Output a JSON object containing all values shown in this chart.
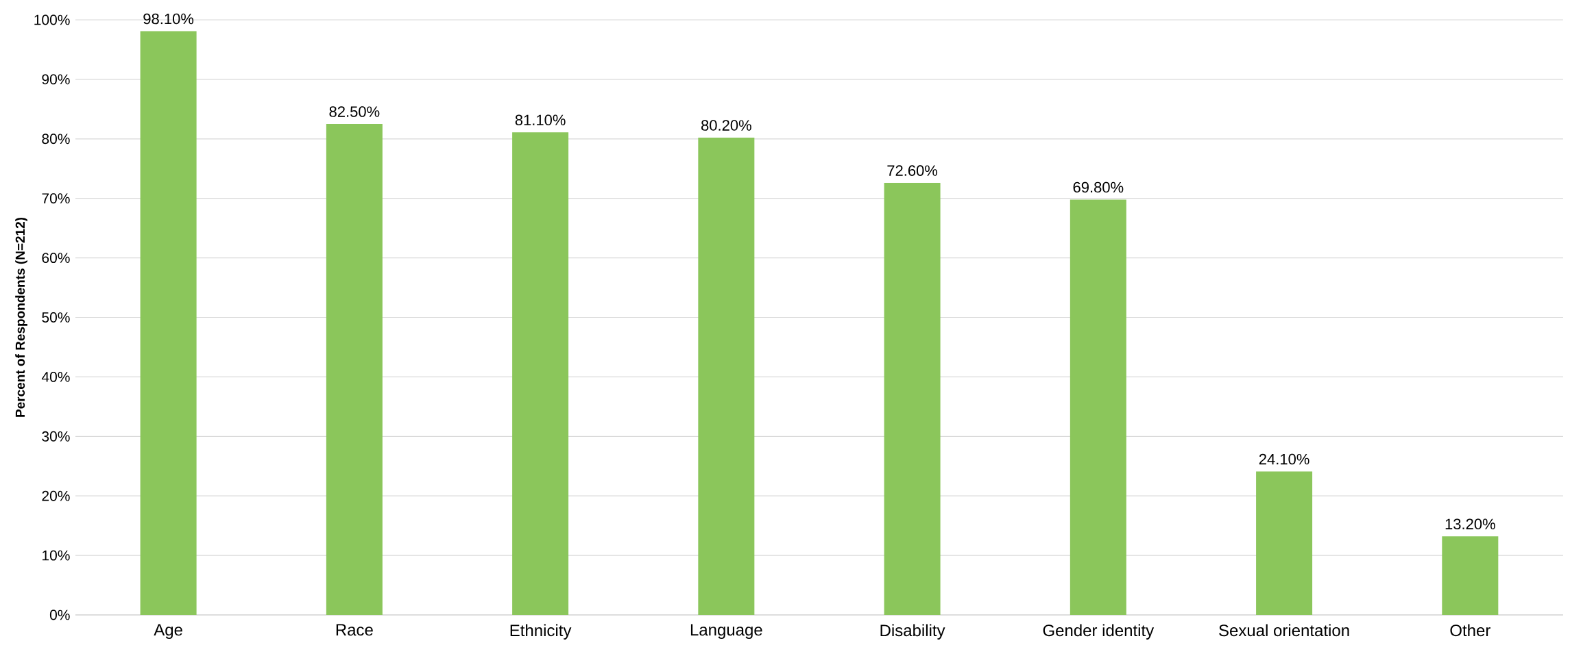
{
  "chart_data": {
    "type": "bar",
    "ylabel": "Percent of Respondents (N=212)",
    "categories": [
      "Age",
      "Race",
      "Ethnicity",
      "Language",
      "Disability",
      "Gender identity",
      "Sexual orientation",
      "Other"
    ],
    "values": [
      98.1,
      82.5,
      81.1,
      80.2,
      72.6,
      69.8,
      24.1,
      13.2
    ],
    "value_labels": [
      "98.10%",
      "82.50%",
      "81.10%",
      "80.20%",
      "72.60%",
      "69.80%",
      "24.10%",
      "13.20%"
    ],
    "color": "#8bc65b",
    "ylim": [
      0,
      100
    ],
    "yticks": [
      {
        "value": 0,
        "label": "0%"
      },
      {
        "value": 10,
        "label": "10%"
      },
      {
        "value": 20,
        "label": "20%"
      },
      {
        "value": 30,
        "label": "30%"
      },
      {
        "value": 40,
        "label": "40%"
      },
      {
        "value": 50,
        "label": "50%"
      },
      {
        "value": 60,
        "label": "60%"
      },
      {
        "value": 70,
        "label": "70%"
      },
      {
        "value": 80,
        "label": "80%"
      },
      {
        "value": 90,
        "label": "90%"
      },
      {
        "value": 100,
        "label": "100%"
      }
    ],
    "grid": "y"
  }
}
